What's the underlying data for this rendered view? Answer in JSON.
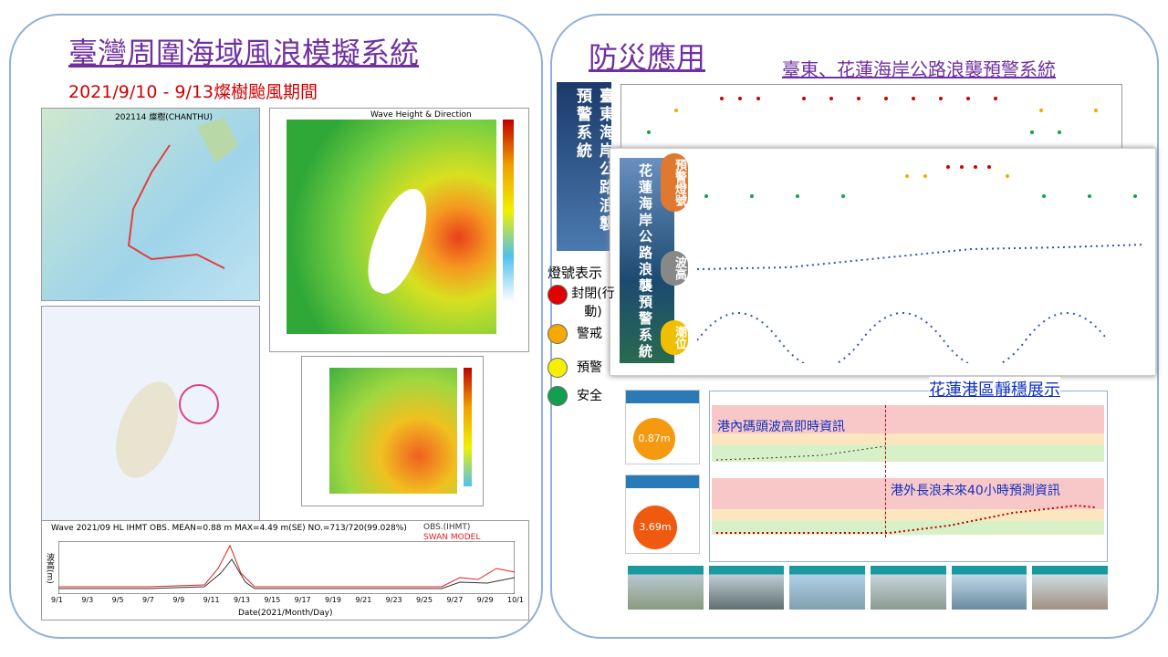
{
  "left": {
    "title": "臺灣周圍海域風浪模擬系統",
    "subtitle": "2021/9/10 - 9/13燦樹颱風期間",
    "track_title": "202114 燦樹(CHANTHU)",
    "wave_title": "Wave Height & Direction",
    "series_title": "Wave 2021/09 HL IHMT OBS. MEAN=0.88 m  MAX=4.49 m(SE)  NO.=713/720(99.028%)",
    "series_legend": [
      {
        "name": "OBS.(IHMT)",
        "color": "#333333"
      },
      {
        "name": "SWAN MODEL",
        "color": "#e02020"
      }
    ],
    "series_xlabel": "Date(2021/Month/Day)",
    "series_ylabel": "波高(m)",
    "series_dates": [
      "9/1",
      "9/3",
      "9/5",
      "9/7",
      "9/9",
      "9/11",
      "9/13",
      "9/15",
      "9/17",
      "9/19",
      "9/21",
      "9/23",
      "9/25",
      "9/27",
      "9/29",
      "10/1"
    ]
  },
  "right": {
    "title": "防災應用",
    "subtitle": "臺東、花蓮海岸公路浪襲預警系統",
    "taitung_banner": "臺東海岸公路浪襲預警系統",
    "hualien_banner": "花蓮海岸公路浪襲預警系統",
    "badges": [
      "預警燈號",
      "波高",
      "潮位"
    ],
    "lights": {
      "title": "燈號表示",
      "items": [
        {
          "label": "封閉(行動)",
          "color": "#e00000"
        },
        {
          "label": "警戒",
          "color": "#f5a800"
        },
        {
          "label": "預警",
          "color": "#f5f000"
        },
        {
          "label": "安全",
          "color": "#12a050"
        }
      ]
    },
    "harbor": {
      "title": "花蓮港區靜穩展示",
      "inner": "港內碼頭波高即時資訊",
      "outer": "港外長浪未來40小時預測資訊",
      "gauges": [
        "0.87m",
        "3.69m"
      ]
    }
  }
}
